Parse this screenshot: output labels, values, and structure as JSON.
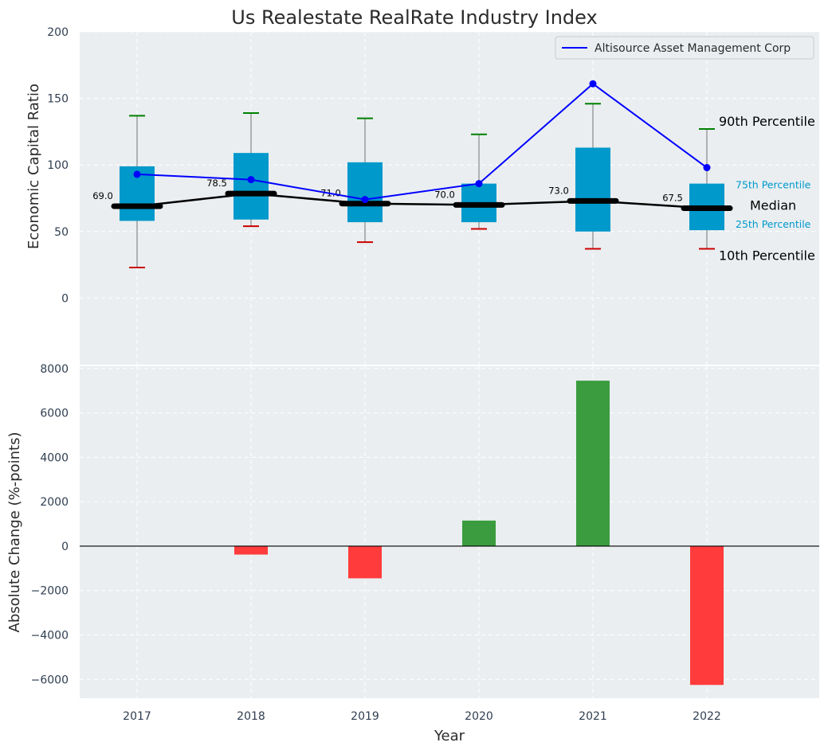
{
  "chart_data": [
    {
      "type": "box",
      "title": "Us Realestate RealRate Industry Index",
      "ylabel": "Economic Capital Ratio",
      "ylim": [
        -50,
        200
      ],
      "yticks": [
        0,
        50,
        100,
        150,
        200
      ],
      "categories": [
        "2017",
        "2018",
        "2019",
        "2020",
        "2021",
        "2022"
      ],
      "p10": [
        23,
        54,
        42,
        52,
        37,
        37
      ],
      "p25": [
        58,
        59,
        57,
        57,
        50,
        51
      ],
      "median": [
        69.0,
        78.5,
        71.0,
        70.0,
        73.0,
        67.5
      ],
      "median_labels": [
        "69.0",
        "78.5",
        "71.0",
        "70.0",
        "73.0",
        "67.5"
      ],
      "p75": [
        99,
        109,
        102,
        86,
        113,
        86
      ],
      "p90": [
        137,
        139,
        135,
        123,
        146,
        127
      ],
      "series": [
        {
          "name": "Altisource Asset Management Corp",
          "values": [
            93,
            89,
            74,
            86,
            161,
            98
          ]
        }
      ],
      "legend_position": "upper-right",
      "annotations": {
        "p90": "90th Percentile",
        "p75": "75th Percentile",
        "median": "Median",
        "p25": "25th Percentile",
        "p10": "10th Percentile"
      },
      "grid": true
    },
    {
      "type": "bar",
      "xlabel": "Year",
      "ylabel": "Absolute Change (%-points)",
      "ylim": [
        -6850,
        8100
      ],
      "yticks": [
        -6000,
        -4000,
        -2000,
        0,
        2000,
        4000,
        6000,
        8000
      ],
      "ytick_labels": [
        "−6000",
        "−4000",
        "−2000",
        "0",
        "2000",
        "4000",
        "6000",
        "8000"
      ],
      "categories": [
        "2017",
        "2018",
        "2019",
        "2020",
        "2021",
        "2022"
      ],
      "values": [
        0,
        -380,
        -1450,
        1150,
        7450,
        -6250
      ],
      "colors": {
        "positive": "#3a9c3e",
        "negative": "#ff3b3b"
      },
      "grid": true
    }
  ]
}
